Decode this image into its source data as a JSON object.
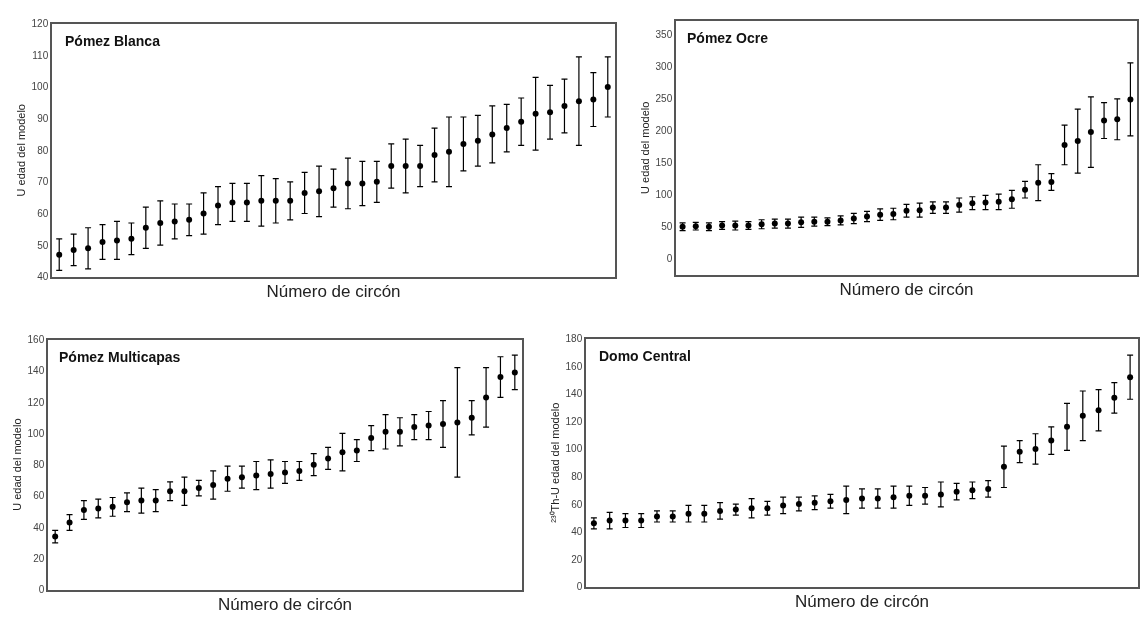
{
  "chart_data": [
    {
      "type": "scatter",
      "title": "Pómez Blanca",
      "xlabel": "Número de circón",
      "ylabel": "U edad del modelo",
      "categories": [
        null,
        null,
        null,
        null,
        null,
        null,
        null,
        null,
        null,
        null,
        null,
        null,
        null,
        null,
        null,
        null,
        null,
        null,
        null,
        null,
        null,
        null,
        null,
        null,
        null,
        null,
        null,
        null,
        null,
        null,
        null,
        null,
        null,
        null,
        null,
        null,
        null,
        null,
        null
      ],
      "series": [
        {
          "color": "#000000",
          "values": [
            47,
            48.5,
            49,
            51,
            51.5,
            52,
            55.5,
            57,
            57.5,
            58,
            60,
            62.5,
            63.5,
            63.5,
            64,
            64,
            64,
            66.5,
            67,
            68,
            69.5,
            69.5,
            70,
            75,
            75,
            75,
            78.5,
            79.5,
            82,
            83,
            85,
            87,
            89,
            91.5,
            92,
            94,
            95.5,
            96,
            100
          ],
          "errors": [
            5,
            5,
            6.5,
            5.5,
            6,
            5,
            6.5,
            7,
            5.5,
            5,
            6.5,
            6,
            6,
            6,
            8,
            7,
            6,
            6.5,
            8,
            6,
            8,
            7,
            6.5,
            7,
            8.5,
            6.5,
            8.5,
            11,
            8.5,
            8,
            9,
            7.5,
            7.5,
            11.5,
            8.5,
            8.5,
            14,
            8.5,
            9.5
          ]
        }
      ],
      "ylim": [
        40,
        120
      ],
      "yticks": [
        40,
        50,
        60,
        70,
        80,
        90,
        100,
        110,
        120
      ],
      "marker": "circle",
      "tick_labels": "y"
    },
    {
      "type": "scatter",
      "title": "Pómez Ocre",
      "xlabel": "Número de circón",
      "ylabel": "U edad del modelo",
      "categories": [
        null,
        null,
        null,
        null,
        null,
        null,
        null,
        null,
        null,
        null,
        null,
        null,
        null,
        null,
        null,
        null,
        null,
        null,
        null,
        null,
        null,
        null,
        null,
        null,
        null,
        null,
        null,
        null,
        null,
        null,
        null,
        null,
        null,
        null,
        null
      ],
      "series": [
        {
          "color": "#000000",
          "values": [
            50,
            51,
            50,
            52,
            52,
            52,
            54,
            55,
            55,
            57,
            58,
            58,
            60,
            63,
            66,
            69,
            70,
            75,
            76,
            80,
            80,
            84,
            87,
            88,
            89,
            93,
            108,
            119,
            120,
            178,
            184,
            198,
            216,
            218,
            249
          ],
          "errors": [
            6,
            6,
            6,
            6,
            7,
            6,
            7,
            7,
            7,
            8,
            7,
            6,
            7,
            8,
            8,
            9,
            9,
            10,
            11,
            9,
            9,
            11,
            10,
            11,
            12,
            14,
            13,
            28,
            13,
            31,
            50,
            55,
            28,
            32,
            57
          ]
        }
      ],
      "ylim": [
        -25,
        372
      ],
      "yticks": [
        0,
        50,
        100,
        150,
        200,
        250,
        300,
        350
      ],
      "tick_labels": "y"
    },
    {
      "type": "scatter",
      "title": "Pómez Multicapas",
      "xlabel": "Número de circón",
      "ylabel": "U edad del modelo",
      "categories": [
        null,
        null,
        null,
        null,
        null,
        null,
        null,
        null,
        null,
        null,
        null,
        null,
        null,
        null,
        null,
        null,
        null,
        null,
        null,
        null,
        null,
        null,
        null,
        null,
        null,
        null,
        null,
        null,
        null,
        null,
        null,
        null,
        null
      ],
      "series": [
        {
          "color": "#000000",
          "values": [
            34,
            43,
            51,
            52,
            53,
            56,
            57,
            57,
            63,
            63,
            65,
            67,
            71,
            72,
            73,
            74,
            75,
            76,
            80,
            84,
            88,
            89,
            97,
            101,
            101,
            104,
            105,
            106,
            107,
            110,
            123,
            136,
            139
          ],
          "errors": [
            4,
            5,
            6,
            6,
            6,
            6,
            8,
            7,
            6,
            9,
            5,
            9,
            8,
            7,
            9,
            9,
            7,
            6,
            7,
            7,
            12,
            7,
            8,
            11,
            9,
            8,
            9,
            15,
            35,
            11,
            19,
            13,
            11
          ]
        }
      ],
      "ylim": [
        0,
        160
      ],
      "yticks": [
        0,
        20,
        40,
        60,
        80,
        100,
        120,
        140,
        160
      ],
      "marker": "circle",
      "tick_labels": "y"
    },
    {
      "type": "scatter",
      "title": "Domo Central",
      "xlabel": "Número de circón",
      "ylabel": "²³⁰Th-U edad del modelo",
      "categories": [
        null,
        null,
        null,
        null,
        null,
        null,
        null,
        null,
        null,
        null,
        null,
        null,
        null,
        null,
        null,
        null,
        null,
        null,
        null,
        null,
        null,
        null,
        null,
        null,
        null,
        null,
        null,
        null,
        null,
        null,
        null,
        null,
        null,
        null,
        null
      ],
      "series": [
        {
          "color": "#000000",
          "values": [
            46,
            48,
            48,
            48,
            51,
            51,
            53,
            53,
            55,
            56,
            57,
            57,
            59,
            60,
            61,
            62,
            63,
            64,
            64,
            65,
            66,
            66,
            67,
            69,
            70,
            71,
            87,
            98,
            100,
            106,
            116,
            124,
            128,
            137,
            152
          ],
          "errors": [
            4,
            6,
            5,
            5,
            4,
            4,
            6,
            6,
            6,
            4,
            7,
            5,
            6,
            5,
            5,
            5,
            10,
            7,
            7,
            8,
            7,
            6,
            9,
            6,
            6,
            6,
            15,
            8,
            11,
            10,
            17,
            18,
            15,
            11,
            16
          ]
        }
      ],
      "ylim": [
        0,
        180
      ],
      "yticks": [
        0,
        20,
        40,
        60,
        80,
        100,
        120,
        140,
        160,
        180
      ],
      "marker": "circle",
      "tick_labels": "y"
    }
  ]
}
